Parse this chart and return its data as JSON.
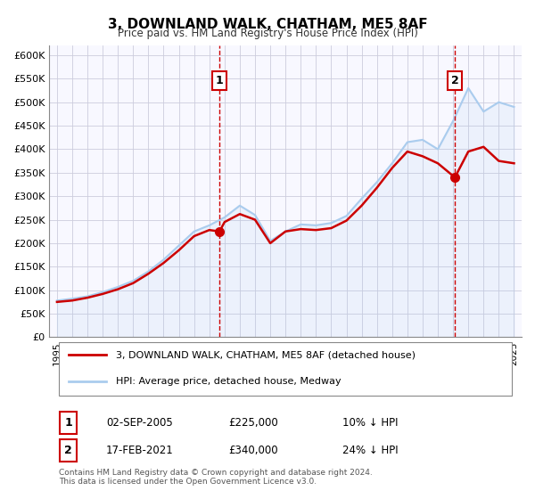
{
  "title": "3, DOWNLAND WALK, CHATHAM, ME5 8AF",
  "subtitle": "Price paid vs. HM Land Registry's House Price Index (HPI)",
  "legend_label_red": "3, DOWNLAND WALK, CHATHAM, ME5 8AF (detached house)",
  "legend_label_blue": "HPI: Average price, detached house, Medway",
  "annotation1_label": "1",
  "annotation1_date": "02-SEP-2005",
  "annotation1_price": "£225,000",
  "annotation1_hpi": "10% ↓ HPI",
  "annotation2_label": "2",
  "annotation2_date": "17-FEB-2021",
  "annotation2_price": "£340,000",
  "annotation2_hpi": "24% ↓ HPI",
  "footer_line1": "Contains HM Land Registry data © Crown copyright and database right 2024.",
  "footer_line2": "This data is licensed under the Open Government Licence v3.0.",
  "ylim": [
    0,
    620000
  ],
  "yticks": [
    0,
    50000,
    100000,
    150000,
    200000,
    250000,
    300000,
    350000,
    400000,
    450000,
    500000,
    550000,
    600000
  ],
  "ytick_labels": [
    "£0",
    "£50K",
    "£100K",
    "£150K",
    "£200K",
    "£250K",
    "£300K",
    "£350K",
    "£400K",
    "£450K",
    "£500K",
    "£550K",
    "£600K"
  ],
  "color_red": "#cc0000",
  "color_blue": "#aaccee",
  "color_vline": "#cc0000",
  "bg_color": "#f8f8ff",
  "grid_color": "#ccccdd",
  "sale1_year": 2005.67,
  "sale1_value": 225000,
  "sale2_year": 2021.12,
  "sale2_value": 340000,
  "hpi_years": [
    1995,
    1996,
    1997,
    1998,
    1999,
    2000,
    2001,
    2002,
    2003,
    2004,
    2005,
    2006,
    2007,
    2008,
    2009,
    2010,
    2011,
    2012,
    2013,
    2014,
    2015,
    2016,
    2017,
    2018,
    2019,
    2020,
    2021,
    2022,
    2023,
    2024,
    2025
  ],
  "hpi_values": [
    78000,
    82000,
    87000,
    96000,
    107000,
    120000,
    140000,
    165000,
    195000,
    225000,
    238000,
    255000,
    280000,
    260000,
    205000,
    225000,
    240000,
    238000,
    243000,
    258000,
    295000,
    330000,
    370000,
    415000,
    420000,
    400000,
    460000,
    530000,
    480000,
    500000,
    490000
  ],
  "price_years": [
    1995,
    1996,
    1997,
    1998,
    1999,
    2000,
    2001,
    2002,
    2003,
    2004,
    2005,
    2005.67,
    2006,
    2007,
    2008,
    2009,
    2010,
    2011,
    2012,
    2013,
    2014,
    2015,
    2016,
    2017,
    2018,
    2019,
    2020,
    2021.12,
    2022,
    2023,
    2024,
    2025
  ],
  "price_values": [
    75000,
    78000,
    84000,
    92000,
    102000,
    115000,
    135000,
    158000,
    185000,
    215000,
    228000,
    225000,
    245000,
    262000,
    250000,
    200000,
    225000,
    230000,
    228000,
    232000,
    248000,
    280000,
    318000,
    360000,
    395000,
    385000,
    370000,
    340000,
    395000,
    405000,
    375000,
    370000
  ]
}
